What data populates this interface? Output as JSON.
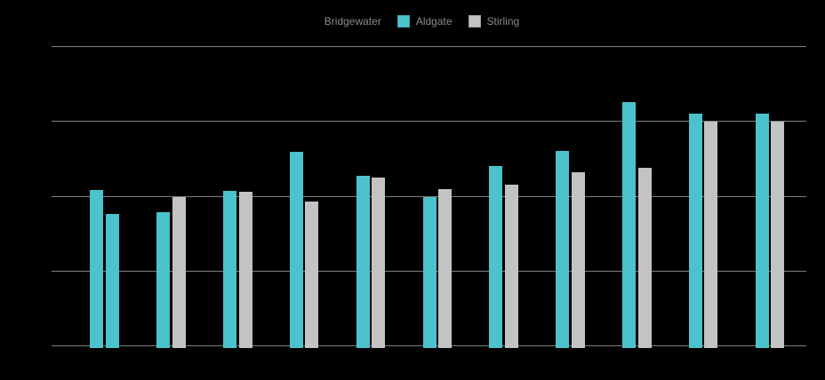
{
  "legend": {
    "items": [
      {
        "label": "Bridgewater",
        "color": "#000000",
        "border": "#000000"
      },
      {
        "label": "Aldgate",
        "color": "#4CC2CC",
        "border": "#3AA6B0"
      },
      {
        "label": "Stirling",
        "color": "#C3C3C3",
        "border": "#A0A0A0"
      }
    ]
  },
  "chart_data": {
    "type": "bar",
    "title": "",
    "xlabel": "",
    "ylabel": "",
    "legend_position": "top",
    "background": "#000000",
    "gridline_color": "#7E7E7E",
    "grid": true,
    "axis_tick_labels_visible": false,
    "group_count": 11,
    "categories": [
      "",
      "",
      "",
      "",
      "",
      "",
      "",
      "",
      "",
      "",
      ""
    ],
    "ylim": [
      0,
      100
    ],
    "gridline_values": [
      0,
      25,
      50,
      75,
      100
    ],
    "series": [
      {
        "name": "Bridgewater",
        "color": "#000000",
        "note": "bars indistinguishable from black background; no visible values",
        "values": null
      },
      {
        "name": "Aldgate",
        "color": "#4CC2CC",
        "values": [
          51.9,
          44.5,
          51.6,
          64.7,
          56.7,
          49.6,
          59.9,
          65.0,
          81.3,
          77.4,
          77.4
        ]
      },
      {
        "name": "Stirling",
        "color": "#C3C3C3",
        "values": [
          43.9,
          49.6,
          51.3,
          48.1,
          56.1,
          52.2,
          53.7,
          57.9,
          59.3,
          74.8,
          74.8
        ]
      }
    ],
    "color_overrides": [
      {
        "series": "Stirling",
        "index": 0,
        "color": "#4CC2CC"
      }
    ]
  }
}
